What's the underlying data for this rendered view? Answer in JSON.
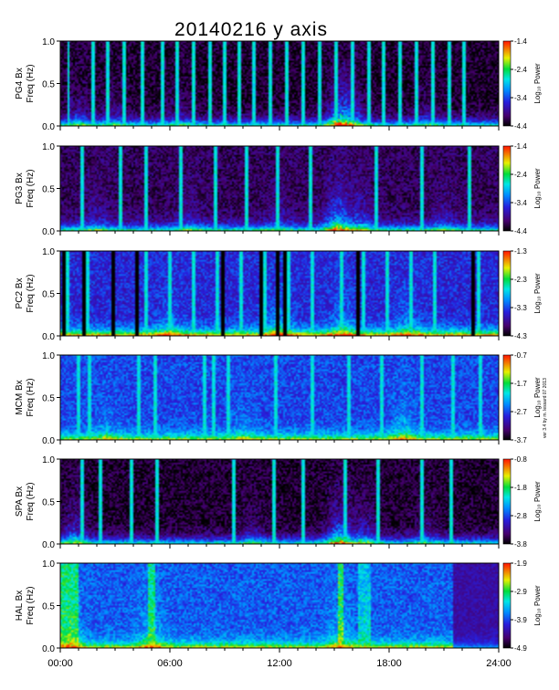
{
  "chart_data": {
    "type": "heatmap",
    "title": "20140216 y axis",
    "xlabel": "",
    "x_ticks": [
      "00:00",
      "06:00",
      "12:00",
      "18:00",
      "24:00"
    ],
    "xlim_hours": [
      0,
      24
    ],
    "ylim_hz": [
      0,
      1
    ],
    "y_ticks": [
      "0.0",
      "0.5",
      "1.0"
    ],
    "colorbar_label": "Log₁₀ Power",
    "side_note": "ver 3.4 by m. lessard 07 2013",
    "grid": false,
    "panels": [
      {
        "station": "PG4 Bx",
        "ylabel": "Freq (Hz)",
        "colorbar_range": [
          -4.4,
          -1.4
        ],
        "colorbar_ticks": [
          "-1.4",
          "-2.4",
          "-3.4",
          "-4.4"
        ],
        "background": 0.05,
        "low_freq_power": 0.62,
        "spikes_hr": [
          0.45,
          1.8,
          2.6,
          3.5,
          4.5,
          5.6,
          6.4,
          7.3,
          8.2,
          9.0,
          9.8,
          10.6,
          11.5,
          12.4,
          13.3,
          14.2,
          15.1,
          16.0,
          16.9,
          17.7,
          18.6,
          19.5,
          20.4,
          21.3,
          22.1
        ],
        "activity_hr": [
          [
            15.3,
            1.0
          ],
          [
            16.0,
            0.55
          ],
          [
            1.0,
            0.45
          ],
          [
            3.0,
            0.35
          ],
          [
            6.5,
            0.3
          ],
          [
            20.0,
            0.3
          ]
        ]
      },
      {
        "station": "PG3 Bx",
        "ylabel": "Freq (Hz)",
        "colorbar_range": [
          -4.4,
          -1.4
        ],
        "colorbar_ticks": [
          "-1.4",
          "-2.4",
          "-3.4",
          "-4.4"
        ],
        "background": 0.1,
        "low_freq_power": 0.6,
        "spikes_hr": [
          1.2,
          3.3,
          4.7,
          6.6,
          8.5,
          10.2,
          11.9,
          13.7,
          17.3,
          19.8,
          22.4
        ],
        "activity_hr": [
          [
            15.2,
            1.0
          ],
          [
            16.5,
            0.5
          ],
          [
            2.0,
            0.35
          ],
          [
            7.0,
            0.3
          ],
          [
            12.0,
            0.3
          ],
          [
            21.0,
            0.3
          ]
        ]
      },
      {
        "station": "PC2 Bx",
        "ylabel": "Freq (Hz)",
        "colorbar_range": [
          -4.3,
          -1.3
        ],
        "colorbar_ticks": [
          "-1.3",
          "-2.3",
          "-3.3",
          "-4.3"
        ],
        "background": 0.28,
        "low_freq_power": 0.68,
        "spikes_hr": [
          0.4,
          1.5,
          4.7,
          6.0,
          7.3,
          8.6,
          9.9,
          11.2,
          12.5,
          13.8,
          15.4,
          16.6,
          17.9,
          19.2,
          20.5,
          22.9
        ],
        "dark_hr": [
          0.2,
          1.3,
          2.9,
          4.2,
          8.9,
          11.0,
          11.9,
          12.3,
          16.3,
          22.6
        ],
        "activity_hr": [
          [
            12.0,
            0.55
          ],
          [
            15.5,
            0.5
          ],
          [
            19.0,
            0.4
          ],
          [
            6.0,
            0.35
          ]
        ]
      },
      {
        "station": "MCM Bx",
        "ylabel": "Freq (Hz)",
        "colorbar_range": [
          -3.7,
          -0.7
        ],
        "colorbar_ticks": [
          "-0.7",
          "-1.7",
          "-2.7",
          "-3.7"
        ],
        "background": 0.33,
        "low_freq_power": 0.5,
        "spikes_hr": [
          1.0,
          1.6,
          4.3,
          5.2,
          7.9,
          8.4,
          9.2,
          11.8,
          13.8,
          15.8,
          17.6,
          19.8,
          21.5,
          23.0
        ],
        "activity_hr": [
          [
            18.8,
            0.45
          ],
          [
            2.5,
            0.25
          ],
          [
            10.0,
            0.25
          ]
        ]
      },
      {
        "station": "SPA Bx",
        "ylabel": "Freq (Hz)",
        "colorbar_range": [
          -3.8,
          -0.8
        ],
        "colorbar_ticks": [
          "-0.8",
          "-1.8",
          "-2.8",
          "-3.8"
        ],
        "background": 0.05,
        "low_freq_power": 0.6,
        "spikes_hr": [
          1.2,
          2.2,
          3.9,
          5.3,
          9.5,
          11.7,
          13.3,
          15.6,
          17.4,
          19.8,
          21.4
        ],
        "activity_hr": [
          [
            15.3,
            1.0
          ],
          [
            0.8,
            0.65
          ],
          [
            16.7,
            0.55
          ],
          [
            10.5,
            0.35
          ],
          [
            20.0,
            0.35
          ]
        ]
      },
      {
        "station": "HAL Bx",
        "ylabel": "Freq (Hz)",
        "colorbar_range": [
          -4.9,
          -1.9
        ],
        "colorbar_ticks": [
          "-1.9",
          "-2.9",
          "-3.9",
          "-4.9"
        ],
        "background": 0.36,
        "low_freq_power": 0.5,
        "broadband_hr": [
          [
            0.0,
            1.0,
            0.62
          ],
          [
            4.8,
            5.2,
            0.6
          ],
          [
            15.2,
            15.5,
            0.65
          ],
          [
            16.3,
            17.0,
            0.5
          ]
        ],
        "fade_after_hr": 21.5,
        "activity_hr": [
          [
            0.5,
            0.6
          ],
          [
            5.0,
            0.5
          ],
          [
            15.3,
            0.4
          ]
        ]
      }
    ]
  }
}
